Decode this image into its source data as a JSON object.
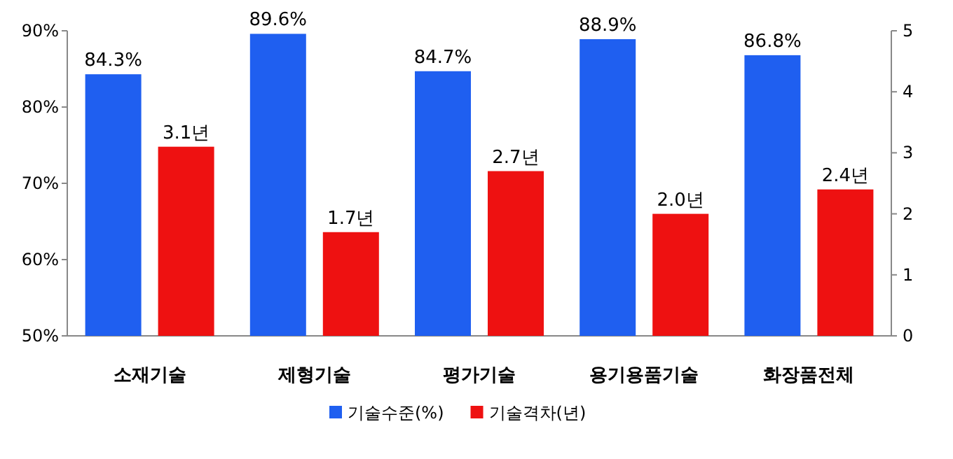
{
  "chart_data": {
    "type": "bar",
    "categories": [
      "소재기술",
      "제형기술",
      "평가기술",
      "용기용품기술",
      "화장품전체"
    ],
    "series": [
      {
        "name": "기술수준(%)",
        "color": "#1f5ff0",
        "values": [
          84.3,
          89.6,
          84.7,
          88.9,
          86.8
        ],
        "value_labels": [
          "84.3%",
          "89.6%",
          "84.7%",
          "88.9%",
          "86.8%"
        ]
      },
      {
        "name": "기술격차(년)",
        "color": "#ee1111",
        "axis": "y2",
        "values": [
          3.1,
          1.7,
          2.7,
          2.0,
          2.4
        ],
        "value_labels": [
          "3.1년",
          "1.7년",
          "2.7년",
          "2.0년",
          "2.4년"
        ]
      }
    ],
    "ylim": [
      50,
      90
    ],
    "yticks": [
      {
        "value": 50,
        "label": "50%"
      },
      {
        "value": 60,
        "label": "60%"
      },
      {
        "value": 70,
        "label": "70%"
      },
      {
        "value": 80,
        "label": "80%"
      },
      {
        "value": 90,
        "label": "90%"
      }
    ],
    "y2lim": [
      0,
      5
    ],
    "y2ticks": [
      0,
      1,
      2,
      3,
      4,
      5
    ],
    "grid": false,
    "legend": "bottom"
  }
}
